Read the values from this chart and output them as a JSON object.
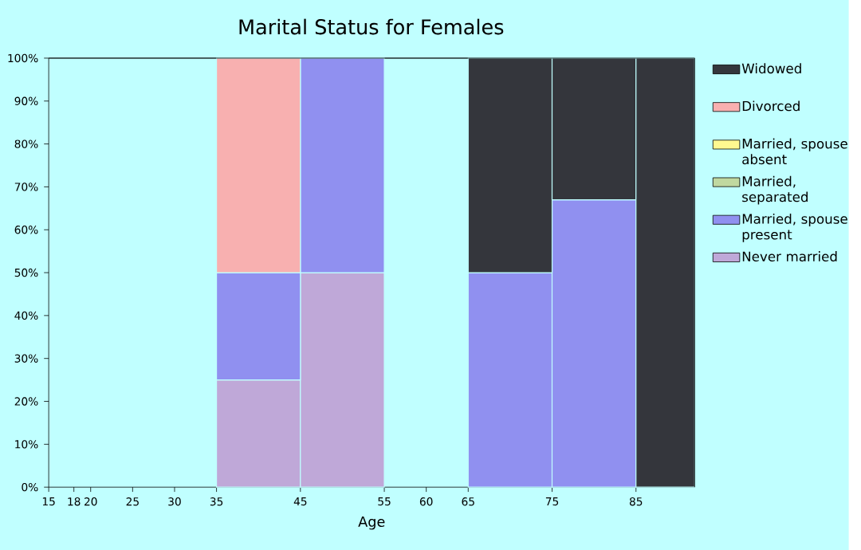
{
  "chart_data": {
    "type": "bar",
    "title": "Marital Status for Females",
    "xlabel": "Age",
    "stacked": true,
    "x": [
      40,
      50,
      70,
      80,
      88.5
    ],
    "xlim": [
      15,
      92
    ],
    "xticks": [
      15,
      18,
      20,
      25,
      30,
      35,
      45,
      55,
      60,
      65,
      75,
      85
    ],
    "ylim": [
      0,
      100
    ],
    "yticks": [
      {
        "value": 0,
        "label": "0%"
      },
      {
        "value": 10,
        "label": "10%"
      },
      {
        "value": 20,
        "label": "20%"
      },
      {
        "value": 30,
        "label": "30%"
      },
      {
        "value": 40,
        "label": "40%"
      },
      {
        "value": 50,
        "label": "50%"
      },
      {
        "value": 60,
        "label": "60%"
      },
      {
        "value": 70,
        "label": "70%"
      },
      {
        "value": 80,
        "label": "80%"
      },
      {
        "value": 90,
        "label": "90%"
      },
      {
        "value": 100,
        "label": "100%"
      }
    ],
    "series": [
      {
        "name": "Never married",
        "color": "#bfa8d8",
        "values": [
          25,
          50,
          null,
          null,
          null
        ]
      },
      {
        "name": "Married, spouse present",
        "color": "#9090f0",
        "values": [
          25,
          50,
          50,
          67,
          null
        ]
      },
      {
        "name": "Married, separated",
        "color": "#c0d8a0",
        "values": [
          null,
          null,
          null,
          null,
          null
        ]
      },
      {
        "name": "Married, spouse absent",
        "color": "#fff890",
        "values": [
          null,
          null,
          null,
          null,
          null
        ]
      },
      {
        "name": "Divorced",
        "color": "#f8b0b0",
        "values": [
          50,
          null,
          null,
          null,
          null
        ]
      },
      {
        "name": "Widowed",
        "color": "#34363c",
        "values": [
          null,
          null,
          50,
          33,
          100
        ]
      }
    ],
    "legend": "right",
    "grid": false
  }
}
